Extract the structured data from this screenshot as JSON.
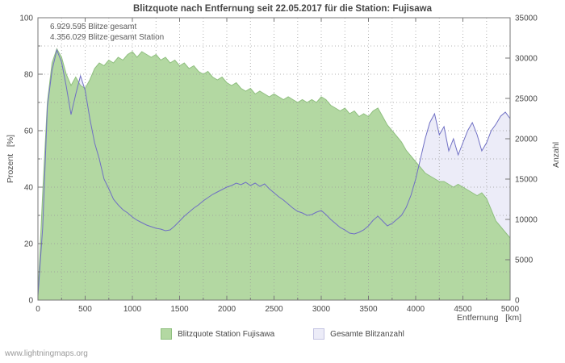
{
  "watermark": "www.lightningmaps.org",
  "chart_data": {
    "type": "area",
    "title": "Blitzquote nach Entfernung seit 22.05.2017 für die Station: Fujisawa",
    "annotations": [
      "6.929.595 Blitze gesamt",
      "4.356.029 Blitze gesamt Station"
    ],
    "xlabel": "Entfernung   [km]",
    "ylabel_left": "Prozent   [%]",
    "ylabel_right": "Anzahl",
    "x_min": 0,
    "x_max": 5000,
    "y_left_min": 0,
    "y_left_max": 100,
    "y_right_min": 0,
    "y_right_max": 35000,
    "x_ticks": [
      0,
      500,
      1000,
      1500,
      2000,
      2500,
      3000,
      3500,
      4000,
      4500,
      5000
    ],
    "y_left_ticks": [
      0,
      20,
      40,
      60,
      80,
      100
    ],
    "y_right_ticks": [
      0,
      5000,
      10000,
      15000,
      20000,
      25000,
      30000,
      35000
    ],
    "grid": true,
    "legend_position": "bottom",
    "x": [
      0,
      50,
      100,
      150,
      200,
      250,
      300,
      350,
      400,
      450,
      500,
      550,
      600,
      650,
      700,
      750,
      800,
      850,
      900,
      950,
      1000,
      1050,
      1100,
      1150,
      1200,
      1250,
      1300,
      1350,
      1400,
      1450,
      1500,
      1550,
      1600,
      1650,
      1700,
      1750,
      1800,
      1850,
      1900,
      1950,
      2000,
      2050,
      2100,
      2150,
      2200,
      2250,
      2300,
      2350,
      2400,
      2450,
      2500,
      2550,
      2600,
      2650,
      2700,
      2750,
      2800,
      2850,
      2900,
      2950,
      3000,
      3050,
      3100,
      3150,
      3200,
      3250,
      3300,
      3350,
      3400,
      3450,
      3500,
      3550,
      3600,
      3650,
      3700,
      3750,
      3800,
      3850,
      3900,
      3950,
      4000,
      4050,
      4100,
      4150,
      4200,
      4250,
      4300,
      4350,
      4400,
      4450,
      4500,
      4550,
      4600,
      4650,
      4700,
      4750,
      4800,
      4850,
      4900,
      4950,
      5000
    ],
    "series": [
      {
        "name": "Blitzquote Station Fujisawa",
        "axis": "left",
        "type": "area",
        "color": "#b3d8a2",
        "line_color": "#8fbf7f",
        "swatch_border": "#8fbf7f",
        "values": [
          2,
          38,
          70,
          84,
          89,
          86,
          80,
          76,
          79,
          76,
          75,
          78,
          82,
          84,
          83,
          85,
          84,
          86,
          85,
          87,
          88,
          86,
          88,
          87,
          86,
          87,
          85,
          86,
          84,
          85,
          83,
          84,
          82,
          83,
          81,
          80,
          81,
          79,
          78,
          79,
          77,
          76,
          77,
          75,
          74,
          75,
          73,
          74,
          73,
          72,
          73,
          72,
          71,
          72,
          71,
          70,
          71,
          70,
          71,
          70,
          72,
          71,
          69,
          68,
          67,
          68,
          66,
          67,
          65,
          66,
          65,
          67,
          68,
          65,
          62,
          60,
          58,
          56,
          53,
          51,
          49,
          47,
          45,
          44,
          43,
          42,
          42,
          41,
          40,
          41,
          40,
          39,
          38,
          37,
          38,
          36,
          32,
          28,
          26,
          24,
          22
        ]
      },
      {
        "name": "Gesamte Blitzanzahl",
        "axis": "right",
        "type": "area-line",
        "color": "#ececf8",
        "line_color": "#6f6fc4",
        "swatch_border": "#c4c4e2",
        "values": [
          500,
          9000,
          24000,
          28500,
          31000,
          29500,
          26500,
          23000,
          25500,
          27800,
          26000,
          22500,
          19500,
          17500,
          15000,
          13800,
          12500,
          11800,
          11200,
          10800,
          10300,
          9900,
          9600,
          9300,
          9100,
          8900,
          8800,
          8600,
          8700,
          9200,
          9800,
          10400,
          10900,
          11400,
          11800,
          12300,
          12700,
          13100,
          13400,
          13700,
          14000,
          14200,
          14500,
          14300,
          14600,
          14200,
          14500,
          14100,
          14400,
          13800,
          13300,
          12800,
          12400,
          11900,
          11400,
          11000,
          10800,
          10500,
          10600,
          10900,
          11100,
          10600,
          10000,
          9500,
          9000,
          8700,
          8300,
          8200,
          8400,
          8700,
          9200,
          9900,
          10400,
          9800,
          9200,
          9500,
          10000,
          10500,
          11500,
          13000,
          15000,
          17500,
          20000,
          22000,
          23100,
          20500,
          21500,
          18500,
          20000,
          18000,
          19500,
          21000,
          22000,
          20500,
          18500,
          19500,
          21000,
          21800,
          22800,
          23300,
          22500
        ]
      }
    ]
  }
}
